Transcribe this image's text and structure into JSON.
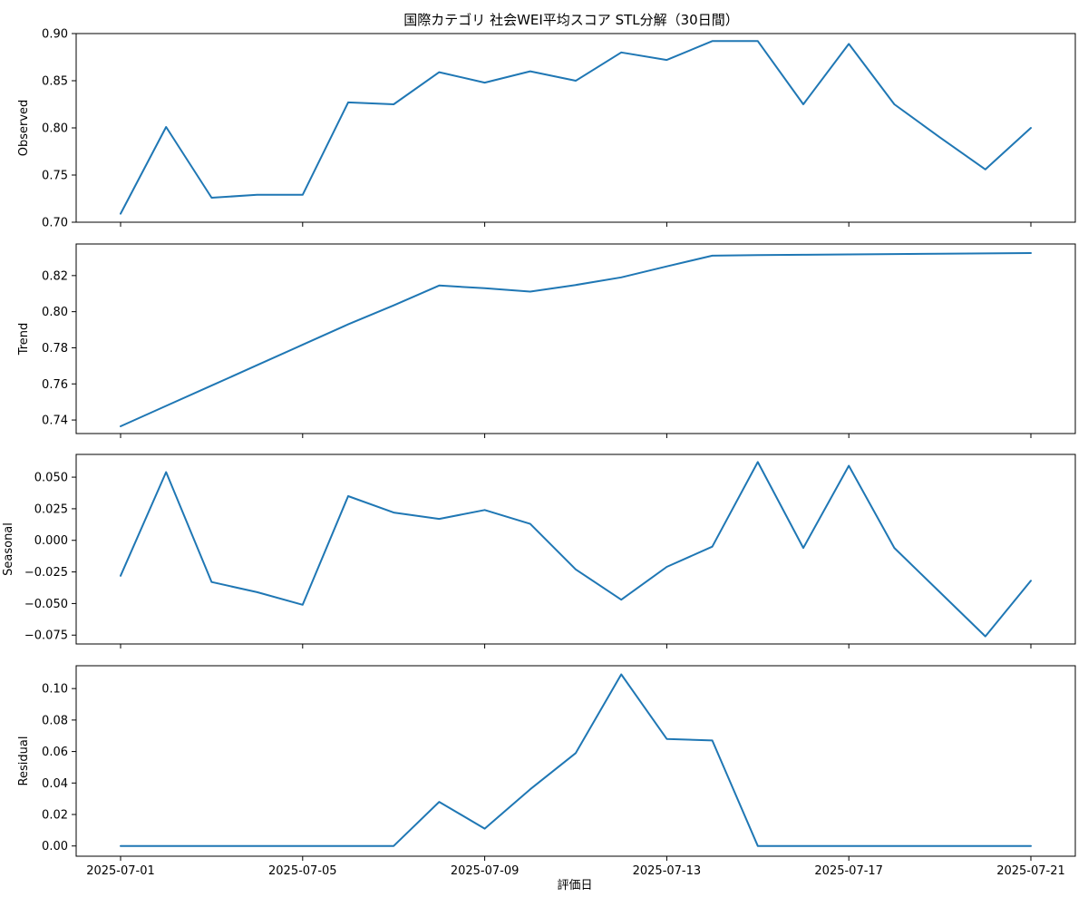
{
  "chart_data": {
    "type": "line",
    "title": "国際カテゴリ 社会WEI平均スコア STL分解（30日間）",
    "xlabel": "評価日",
    "series_color": "#1f77b4",
    "x": [
      "2025-07-01",
      "2025-07-02",
      "2025-07-03",
      "2025-07-04",
      "2025-07-05",
      "2025-07-06",
      "2025-07-07",
      "2025-07-08",
      "2025-07-09",
      "2025-07-10",
      "2025-07-11",
      "2025-07-12",
      "2025-07-13",
      "2025-07-14",
      "2025-07-15",
      "2025-07-16",
      "2025-07-17",
      "2025-07-18",
      "2025-07-19",
      "2025-07-20",
      "2025-07-21"
    ],
    "x_tick_labels": [
      "2025-07-01",
      "2025-07-05",
      "2025-07-09",
      "2025-07-13",
      "2025-07-17",
      "2025-07-21"
    ],
    "panels": [
      {
        "ylabel": "Observed",
        "ylim": [
          0.7,
          0.9
        ],
        "yticks": [
          0.7,
          0.75,
          0.8,
          0.85,
          0.9
        ],
        "ytick_labels": [
          "0.70",
          "0.75",
          "0.80",
          "0.85",
          "0.90"
        ],
        "values": [
          0.709,
          0.801,
          0.726,
          0.729,
          0.729,
          0.827,
          0.825,
          0.859,
          0.848,
          0.86,
          0.85,
          0.88,
          0.872,
          0.892,
          0.892,
          0.825,
          0.889,
          0.825,
          0.79,
          0.756,
          0.8
        ]
      },
      {
        "ylabel": "Trend",
        "ylim": [
          0.7325,
          0.8375
        ],
        "yticks": [
          0.74,
          0.76,
          0.78,
          0.8,
          0.82
        ],
        "ytick_labels": [
          "0.74",
          "0.76",
          "0.78",
          "0.80",
          "0.82"
        ],
        "values": [
          0.7365,
          0.7478,
          0.7591,
          0.7704,
          0.7817,
          0.793,
          0.8035,
          0.8145,
          0.813,
          0.8111,
          0.8148,
          0.819,
          0.8251,
          0.831,
          0.8313,
          0.8315,
          0.8317,
          0.8319,
          0.8321,
          0.8323,
          0.8325
        ]
      },
      {
        "ylabel": "Seasonal",
        "ylim": [
          -0.082,
          0.068
        ],
        "yticks": [
          -0.075,
          -0.05,
          -0.025,
          0.0,
          0.025,
          0.05
        ],
        "ytick_labels": [
          "−0.075",
          "−0.050",
          "−0.025",
          "0.000",
          "0.025",
          "0.050"
        ],
        "values": [
          -0.028,
          0.054,
          -0.033,
          -0.041,
          -0.051,
          0.035,
          0.022,
          0.017,
          0.024,
          0.013,
          -0.023,
          -0.047,
          -0.021,
          -0.005,
          0.062,
          -0.006,
          0.059,
          -0.006,
          -0.041,
          -0.076,
          -0.032
        ]
      },
      {
        "ylabel": "Residual",
        "ylim": [
          -0.0065,
          0.1145
        ],
        "yticks": [
          0.0,
          0.02,
          0.04,
          0.06,
          0.08,
          0.1
        ],
        "ytick_labels": [
          "0.00",
          "0.02",
          "0.04",
          "0.06",
          "0.08",
          "0.10"
        ],
        "values": [
          0,
          0,
          0,
          0,
          0,
          0,
          0,
          0.028,
          0.011,
          0.036,
          0.059,
          0.109,
          0.068,
          0.067,
          0,
          0,
          0,
          0,
          0,
          0,
          0
        ]
      }
    ]
  }
}
